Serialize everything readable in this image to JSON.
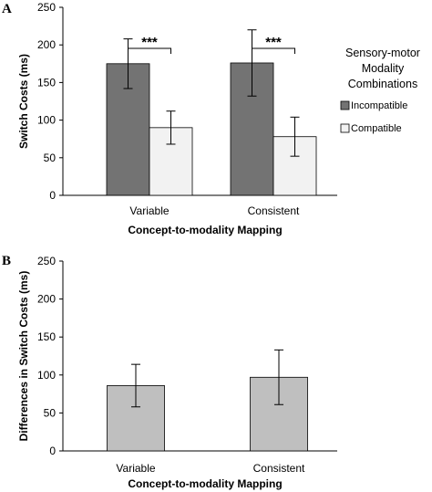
{
  "chart_data": [
    {
      "panel": "A",
      "type": "bar",
      "categories": [
        "Variable",
        "Consistent"
      ],
      "series": [
        {
          "name": "Incompatible",
          "values": [
            175,
            176
          ],
          "errors": [
            33,
            44
          ],
          "color": "#737373"
        },
        {
          "name": "Compatible",
          "values": [
            90,
            78
          ],
          "errors": [
            22,
            26
          ],
          "color": "#f2f2f2"
        }
      ],
      "xlabel": "Concept-to-modality Mapping",
      "ylabel": "Switch Costs (ms)",
      "ylim": [
        0,
        250
      ],
      "yticks": [
        "0",
        "50",
        "100",
        "150",
        "200",
        "250"
      ],
      "legend": {
        "title": [
          "Sensory-motor",
          "Modality",
          "Combinations"
        ],
        "placement": "right"
      },
      "annotations": [
        "***",
        "***"
      ],
      "grid": false
    },
    {
      "panel": "B",
      "type": "bar",
      "categories": [
        "Variable",
        "Consistent"
      ],
      "series": [
        {
          "values": [
            86,
            97
          ],
          "errors": [
            28,
            36
          ],
          "color": "#bfbfbf"
        }
      ],
      "xlabel": "Concept-to-modality Mapping",
      "ylabel": "Differences in Switch Costs (ms)",
      "ylim": [
        0,
        250
      ],
      "yticks": [
        "0",
        "50",
        "100",
        "150",
        "200",
        "250"
      ],
      "grid": false
    }
  ]
}
